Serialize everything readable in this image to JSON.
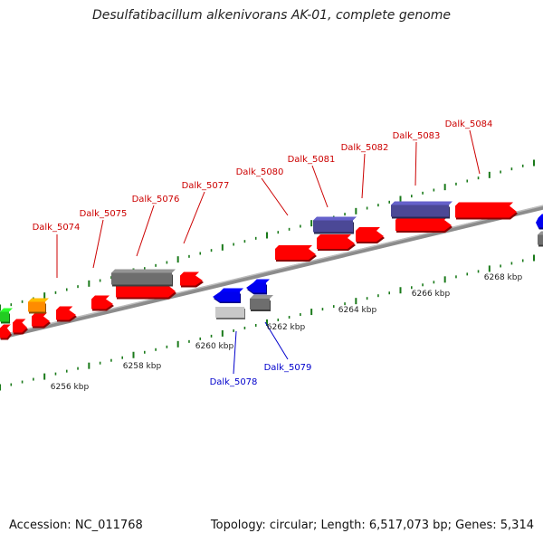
{
  "title": "Desulfatibacillum alkenivorans AK-01, complete genome",
  "footer": {
    "accession": "Accession: NC_011768",
    "stats": "Topology: circular; Length: 6,517,073 bp; Genes: 5,314"
  },
  "colors": {
    "forward_gene": "#ff0000",
    "cds_purple": "#4b4896",
    "cds_gray": "#6e6e6e",
    "cds_lightgray": "#c8c8c8",
    "reverse_gene": "#0000ee",
    "green_gene": "#22cc22",
    "orange_gene": "#ff8c00",
    "backbone": "#8c8c8c",
    "tick": "#1a7a1a",
    "label_forward": "#cc0000",
    "label_reverse": "#0000cc"
  },
  "scale": {
    "unit": "kbp",
    "tick_labels": [
      "6256 kbp",
      "6258 kbp",
      "6260 kbp",
      "6262 kbp",
      "6264 kbp",
      "6266 kbp",
      "6268 kbp"
    ]
  },
  "gene_labels": {
    "forward": [
      "Dalk_5074",
      "Dalk_5075",
      "Dalk_5076",
      "Dalk_5077",
      "Dalk_5080",
      "Dalk_5081",
      "Dalk_5082",
      "Dalk_5083",
      "Dalk_5084"
    ],
    "reverse": [
      "Dalk_5078",
      "Dalk_5079"
    ]
  }
}
